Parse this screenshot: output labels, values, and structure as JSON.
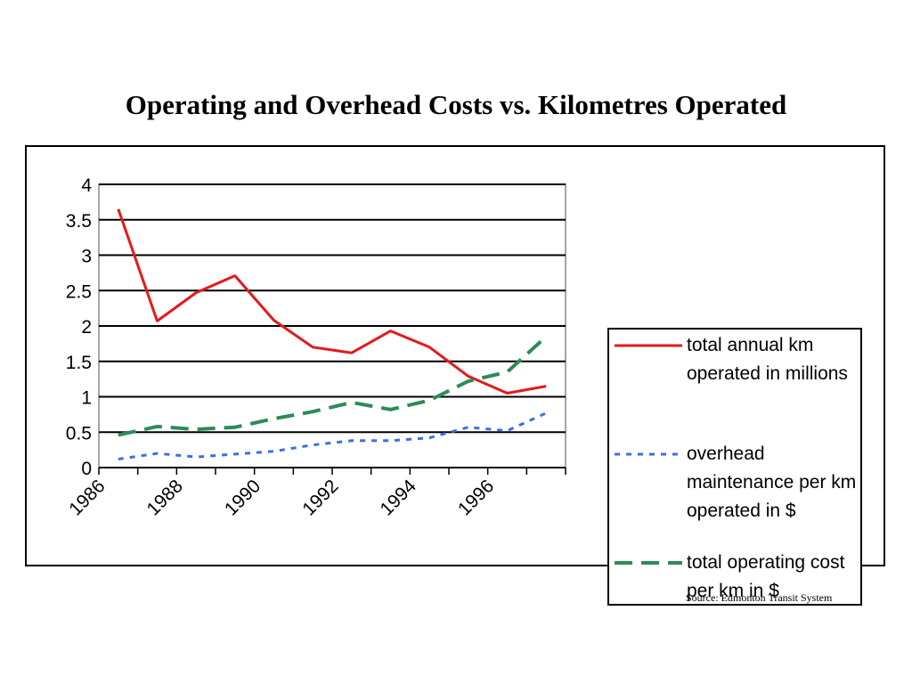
{
  "page": {
    "title": "Operating and Overhead Costs vs. Kilometres Operated",
    "source": "Source:  Edmonton Transit System"
  },
  "chart_data": {
    "type": "line",
    "title": "Operating and Overhead Costs vs. Kilometres Operated",
    "xlabel": "",
    "ylabel": "",
    "ylim": [
      0,
      4
    ],
    "yticks": [
      0,
      0.5,
      1,
      1.5,
      2,
      2.5,
      3,
      3.5,
      4
    ],
    "ytick_labels": [
      "0",
      "0.5",
      "1",
      "1.5",
      "2",
      "2.5",
      "3",
      "3.5",
      "4"
    ],
    "x": [
      1986,
      1987,
      1988,
      1989,
      1990,
      1991,
      1992,
      1993,
      1994,
      1995,
      1996,
      1997
    ],
    "xtick_labels": [
      "1986",
      "1988",
      "1990",
      "1992",
      "1994",
      "1996"
    ],
    "grid": "horizontal",
    "legend_position": "right",
    "series": [
      {
        "name": "total annual km operated in millions",
        "color": "#e31a1c",
        "style": "solid",
        "values": [
          3.65,
          2.07,
          2.47,
          2.71,
          2.08,
          1.7,
          1.62,
          1.93,
          1.7,
          1.29,
          1.05,
          1.15
        ]
      },
      {
        "name": "overhead maintenance per km operated in $",
        "color": "#3b6fe8",
        "style": "dotted",
        "values": [
          0.12,
          0.2,
          0.15,
          0.19,
          0.23,
          0.32,
          0.38,
          0.38,
          0.42,
          0.57,
          0.52,
          0.77
        ]
      },
      {
        "name": "total operating cost per km in $",
        "color": "#2e8b57",
        "style": "dashed",
        "values": [
          0.46,
          0.58,
          0.54,
          0.57,
          0.69,
          0.79,
          0.92,
          0.82,
          0.95,
          1.22,
          1.35,
          1.85
        ]
      }
    ]
  }
}
